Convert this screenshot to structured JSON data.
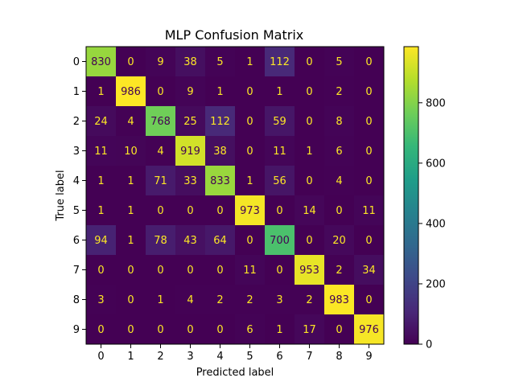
{
  "chart_data": {
    "type": "heatmap",
    "title": "MLP Confusion Matrix",
    "xlabel": "Predicted label",
    "ylabel": "True label",
    "x_categories": [
      "0",
      "1",
      "2",
      "3",
      "4",
      "5",
      "6",
      "7",
      "8",
      "9"
    ],
    "y_categories": [
      "0",
      "1",
      "2",
      "3",
      "4",
      "5",
      "6",
      "7",
      "8",
      "9"
    ],
    "values": [
      [
        830,
        0,
        9,
        38,
        5,
        1,
        112,
        0,
        5,
        0
      ],
      [
        1,
        986,
        0,
        9,
        1,
        0,
        1,
        0,
        2,
        0
      ],
      [
        24,
        4,
        768,
        25,
        112,
        0,
        59,
        0,
        8,
        0
      ],
      [
        11,
        10,
        4,
        919,
        38,
        0,
        11,
        1,
        6,
        0
      ],
      [
        1,
        1,
        71,
        33,
        833,
        1,
        56,
        0,
        4,
        0
      ],
      [
        1,
        1,
        0,
        0,
        0,
        973,
        0,
        14,
        0,
        11
      ],
      [
        94,
        1,
        78,
        43,
        64,
        0,
        700,
        0,
        20,
        0
      ],
      [
        0,
        0,
        0,
        0,
        0,
        11,
        0,
        953,
        2,
        34
      ],
      [
        3,
        0,
        1,
        4,
        2,
        2,
        3,
        2,
        983,
        0
      ],
      [
        0,
        0,
        0,
        0,
        0,
        6,
        1,
        17,
        0,
        976
      ]
    ],
    "colormap": "viridis",
    "colorbar": {
      "range": [
        0,
        986
      ],
      "ticks": [
        0,
        200,
        400,
        600,
        800
      ]
    },
    "text_colors": {
      "on_dark": "#fde725",
      "on_light": "#440154"
    }
  }
}
